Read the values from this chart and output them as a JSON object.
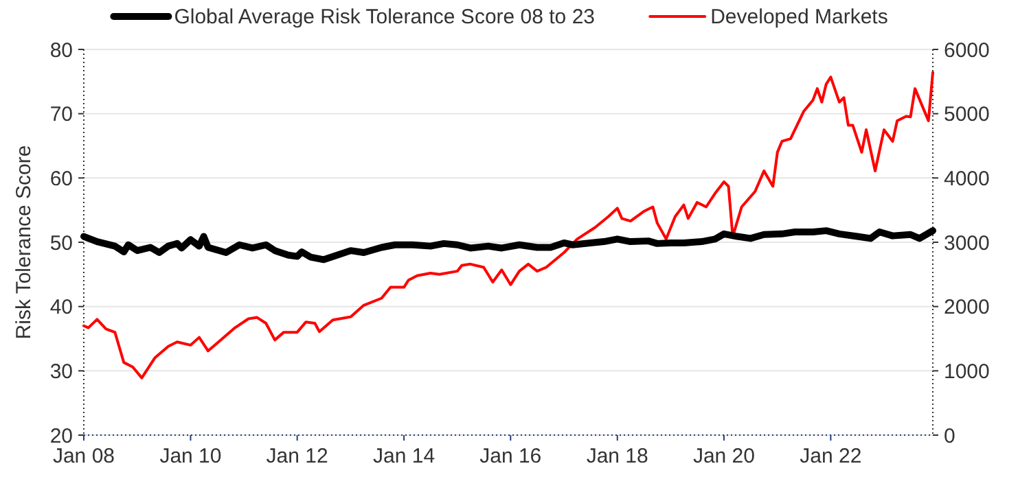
{
  "chart_data": {
    "type": "line",
    "ylabel": "Risk Tolerance Score",
    "ylim": [
      20,
      80
    ],
    "yticks": [
      20,
      30,
      40,
      50,
      60,
      70,
      80
    ],
    "y2lim": [
      0,
      6000
    ],
    "y2ticks": [
      0,
      1000,
      2000,
      3000,
      4000,
      5000,
      6000
    ],
    "xlim": [
      "2008-01",
      "2023-12"
    ],
    "xticks": [
      {
        "value": "2008-01",
        "label": "Jan 08"
      },
      {
        "value": "2010-01",
        "label": "Jan 10"
      },
      {
        "value": "2012-01",
        "label": "Jan 12"
      },
      {
        "value": "2014-01",
        "label": "Jan 14"
      },
      {
        "value": "2016-01",
        "label": "Jan 16"
      },
      {
        "value": "2018-01",
        "label": "Jan 18"
      },
      {
        "value": "2020-01",
        "label": "Jan 20"
      },
      {
        "value": "2022-01",
        "label": "Jan 22"
      }
    ],
    "grid": "y",
    "legend": "top",
    "marker": "none",
    "line_style": "solid",
    "series": [
      {
        "name": "Global Average Risk Tolerance Score 08 to 23",
        "color": "#000000",
        "x": [
          "2008-01",
          "2008-04",
          "2008-08",
          "2008-10",
          "2008-11",
          "2009-01",
          "2009-04",
          "2009-06",
          "2009-08",
          "2009-10",
          "2009-11",
          "2010-01",
          "2010-03",
          "2010-04",
          "2010-05",
          "2010-09",
          "2010-12",
          "2011-03",
          "2011-06",
          "2011-08",
          "2011-11",
          "2012-01",
          "2012-02",
          "2012-04",
          "2012-07",
          "2012-10",
          "2013-01",
          "2013-04",
          "2013-08",
          "2013-11",
          "2014-03",
          "2014-07",
          "2014-10",
          "2015-01",
          "2015-04",
          "2015-08",
          "2015-11",
          "2016-03",
          "2016-07",
          "2016-10",
          "2017-01",
          "2017-03",
          "2017-07",
          "2017-10",
          "2018-01",
          "2018-04",
          "2018-08",
          "2018-10",
          "2019-01",
          "2019-04",
          "2019-08",
          "2019-11",
          "2020-01",
          "2020-04",
          "2020-07",
          "2020-10",
          "2021-02",
          "2021-05",
          "2021-09",
          "2021-12",
          "2022-03",
          "2022-07",
          "2022-10",
          "2022-12",
          "2023-03",
          "2023-07",
          "2023-09",
          "2023-12"
        ],
        "values": [
          50.9,
          50.1,
          49.4,
          48.5,
          49.6,
          48.7,
          49.2,
          48.4,
          49.4,
          49.8,
          49.1,
          50.4,
          49.4,
          50.9,
          49.2,
          48.4,
          49.6,
          49.1,
          49.6,
          48.7,
          48.0,
          47.8,
          48.5,
          47.7,
          47.3,
          48.0,
          48.7,
          48.4,
          49.2,
          49.6,
          49.6,
          49.4,
          49.8,
          49.6,
          49.1,
          49.4,
          49.1,
          49.6,
          49.2,
          49.2,
          49.9,
          49.6,
          49.9,
          50.1,
          50.5,
          50.1,
          50.2,
          49.8,
          49.9,
          49.9,
          50.1,
          50.5,
          51.3,
          50.9,
          50.6,
          51.2,
          51.3,
          51.6,
          51.6,
          51.8,
          51.3,
          50.9,
          50.6,
          51.6,
          51.0,
          51.2,
          50.6,
          51.8
        ]
      },
      {
        "name": "Developed Markets",
        "color": "#ff0000",
        "axis": "y2",
        "x": [
          "2008-01",
          "2008-02",
          "2008-04",
          "2008-06",
          "2008-08",
          "2008-10",
          "2008-12",
          "2009-02",
          "2009-05",
          "2009-08",
          "2009-10",
          "2010-01",
          "2010-03",
          "2010-05",
          "2010-08",
          "2010-11",
          "2011-02",
          "2011-04",
          "2011-06",
          "2011-08",
          "2011-10",
          "2012-01",
          "2012-03",
          "2012-05",
          "2012-06",
          "2012-09",
          "2013-01",
          "2013-04",
          "2013-08",
          "2013-10",
          "2014-01",
          "2014-02",
          "2014-04",
          "2014-07",
          "2014-09",
          "2015-01",
          "2015-02",
          "2015-04",
          "2015-07",
          "2015-09",
          "2015-11",
          "2016-01",
          "2016-03",
          "2016-05",
          "2016-07",
          "2016-09",
          "2017-01",
          "2017-04",
          "2017-08",
          "2017-11",
          "2018-01",
          "2018-02",
          "2018-04",
          "2018-07",
          "2018-09",
          "2018-10",
          "2018-12",
          "2019-02",
          "2019-04",
          "2019-05",
          "2019-07",
          "2019-09",
          "2019-11",
          "2020-01",
          "2020-02",
          "2020-03",
          "2020-05",
          "2020-08",
          "2020-10",
          "2020-12",
          "2021-01",
          "2021-02",
          "2021-04",
          "2021-07",
          "2021-09",
          "2021-10",
          "2021-11",
          "2021-12",
          "2022-01",
          "2022-03",
          "2022-04",
          "2022-05",
          "2022-06",
          "2022-08",
          "2022-09",
          "2022-11",
          "2023-01",
          "2023-03",
          "2023-04",
          "2023-06",
          "2023-07",
          "2023-08",
          "2023-11",
          "2023-12"
        ],
        "values": [
          1700,
          1670,
          1800,
          1650,
          1600,
          1130,
          1060,
          890,
          1200,
          1380,
          1450,
          1400,
          1520,
          1310,
          1490,
          1670,
          1810,
          1830,
          1740,
          1480,
          1600,
          1600,
          1760,
          1740,
          1610,
          1790,
          1840,
          2020,
          2130,
          2300,
          2300,
          2410,
          2480,
          2520,
          2500,
          2550,
          2640,
          2660,
          2610,
          2380,
          2570,
          2340,
          2550,
          2660,
          2550,
          2610,
          2840,
          3050,
          3230,
          3400,
          3530,
          3370,
          3330,
          3480,
          3550,
          3300,
          3050,
          3400,
          3580,
          3370,
          3620,
          3550,
          3760,
          3940,
          3870,
          3090,
          3550,
          3790,
          4110,
          3870,
          4400,
          4570,
          4610,
          5040,
          5210,
          5390,
          5180,
          5460,
          5570,
          5180,
          5250,
          4820,
          4820,
          4400,
          4750,
          4110,
          4750,
          4570,
          4890,
          4960,
          4950,
          5390,
          4890,
          5640
        ]
      }
    ]
  }
}
